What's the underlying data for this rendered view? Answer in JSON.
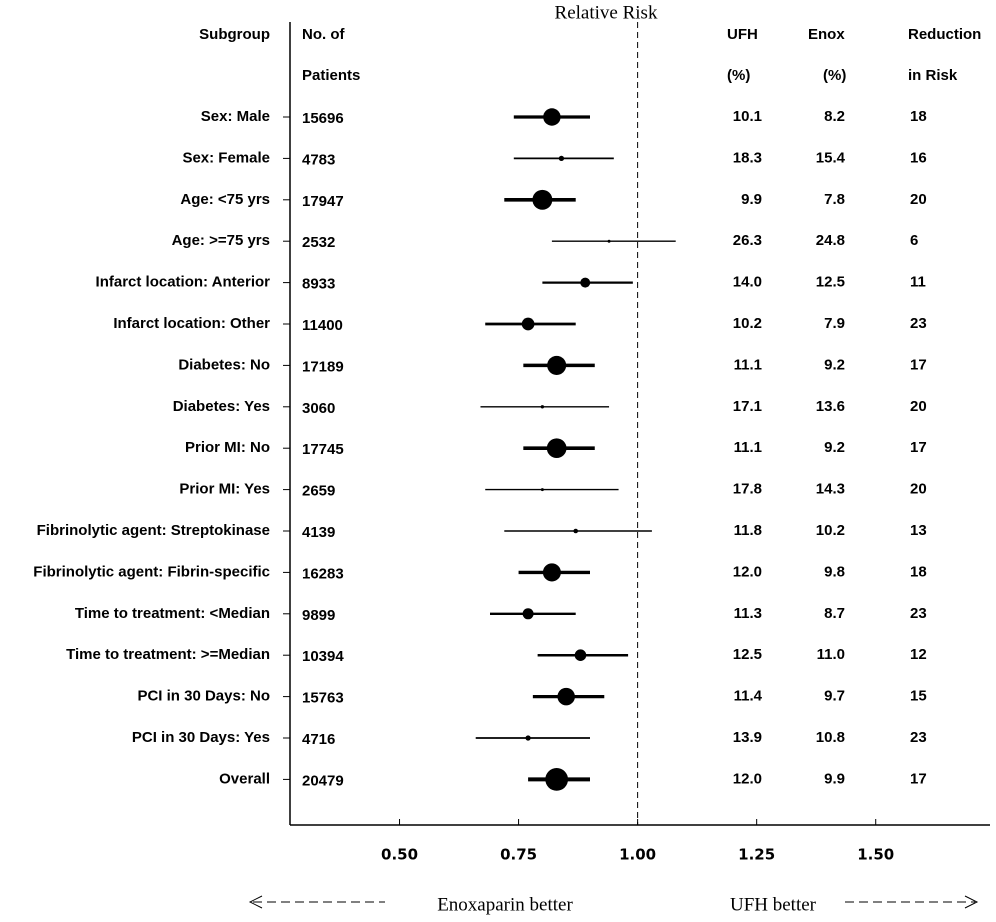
{
  "chart_data": {
    "type": "forest",
    "title": "Relative Risk",
    "headers": {
      "subgroup": "Subgroup",
      "patients": [
        "No. of",
        "Patients"
      ],
      "ufh": [
        "UFH",
        "(%)"
      ],
      "enox": [
        "Enox",
        "(%)"
      ],
      "reduction": [
        "Reduction",
        "in Risk"
      ]
    },
    "left_note": "Enoxaparin better",
    "right_note": "UFH  better",
    "xlim": [
      0.27,
      1.74
    ],
    "xticks": [
      {
        "value": 0.5,
        "label": "0.50"
      },
      {
        "value": 0.75,
        "label": "0.75"
      },
      {
        "value": 1.0,
        "label": "1.00"
      },
      {
        "value": 1.25,
        "label": "1.25"
      },
      {
        "value": 1.5,
        "label": "1.50"
      }
    ],
    "reference_line": 1.0,
    "color": "#000000",
    "rows": [
      {
        "subgroup": "Sex: Male",
        "patients": 15696,
        "rr": 0.82,
        "lo": 0.74,
        "hi": 0.9,
        "ufh": "10.1",
        "enox": "8.2",
        "reduction": 18
      },
      {
        "subgroup": "Sex: Female",
        "patients": 4783,
        "rr": 0.84,
        "lo": 0.74,
        "hi": 0.95,
        "ufh": "18.3",
        "enox": "15.4",
        "reduction": 16
      },
      {
        "subgroup": "Age: <75 yrs",
        "patients": 17947,
        "rr": 0.8,
        "lo": 0.72,
        "hi": 0.87,
        "ufh": "9.9",
        "enox": "7.8",
        "reduction": 20
      },
      {
        "subgroup": "Age: >=75 yrs",
        "patients": 2532,
        "rr": 0.94,
        "lo": 0.82,
        "hi": 1.08,
        "ufh": "26.3",
        "enox": "24.8",
        "reduction": 6
      },
      {
        "subgroup": "Infarct location: Anterior",
        "patients": 8933,
        "rr": 0.89,
        "lo": 0.8,
        "hi": 0.99,
        "ufh": "14.0",
        "enox": "12.5",
        "reduction": 11
      },
      {
        "subgroup": "Infarct location: Other",
        "patients": 11400,
        "rr": 0.77,
        "lo": 0.68,
        "hi": 0.87,
        "ufh": "10.2",
        "enox": "7.9",
        "reduction": 23
      },
      {
        "subgroup": "Diabetes: No",
        "patients": 17189,
        "rr": 0.83,
        "lo": 0.76,
        "hi": 0.91,
        "ufh": "11.1",
        "enox": "9.2",
        "reduction": 17
      },
      {
        "subgroup": "Diabetes: Yes",
        "patients": 3060,
        "rr": 0.8,
        "lo": 0.67,
        "hi": 0.94,
        "ufh": "17.1",
        "enox": "13.6",
        "reduction": 20
      },
      {
        "subgroup": "Prior MI: No",
        "patients": 17745,
        "rr": 0.83,
        "lo": 0.76,
        "hi": 0.91,
        "ufh": "11.1",
        "enox": "9.2",
        "reduction": 17
      },
      {
        "subgroup": "Prior MI: Yes",
        "patients": 2659,
        "rr": 0.8,
        "lo": 0.68,
        "hi": 0.96,
        "ufh": "17.8",
        "enox": "14.3",
        "reduction": 20
      },
      {
        "subgroup": "Fibrinolytic agent: Streptokinase",
        "patients": 4139,
        "rr": 0.87,
        "lo": 0.72,
        "hi": 1.03,
        "ufh": "11.8",
        "enox": "10.2",
        "reduction": 13
      },
      {
        "subgroup": "Fibrinolytic agent: Fibrin-specific",
        "patients": 16283,
        "rr": 0.82,
        "lo": 0.75,
        "hi": 0.9,
        "ufh": "12.0",
        "enox": "9.8",
        "reduction": 18
      },
      {
        "subgroup": "Time to treatment: <Median",
        "patients": 9899,
        "rr": 0.77,
        "lo": 0.69,
        "hi": 0.87,
        "ufh": "11.3",
        "enox": "8.7",
        "reduction": 23
      },
      {
        "subgroup": "Time to treatment: >=Median",
        "patients": 10394,
        "rr": 0.88,
        "lo": 0.79,
        "hi": 0.98,
        "ufh": "12.5",
        "enox": "11.0",
        "reduction": 12
      },
      {
        "subgroup": "PCI in 30 Days: No",
        "patients": 15763,
        "rr": 0.85,
        "lo": 0.78,
        "hi": 0.93,
        "ufh": "11.4",
        "enox": "9.7",
        "reduction": 15
      },
      {
        "subgroup": "PCI in 30 Days: Yes",
        "patients": 4716,
        "rr": 0.77,
        "lo": 0.66,
        "hi": 0.9,
        "ufh": "13.9",
        "enox": "10.8",
        "reduction": 23
      },
      {
        "subgroup": "Overall",
        "patients": 20479,
        "rr": 0.83,
        "lo": 0.77,
        "hi": 0.9,
        "ufh": "12.0",
        "enox": "9.9",
        "reduction": 17
      }
    ]
  }
}
